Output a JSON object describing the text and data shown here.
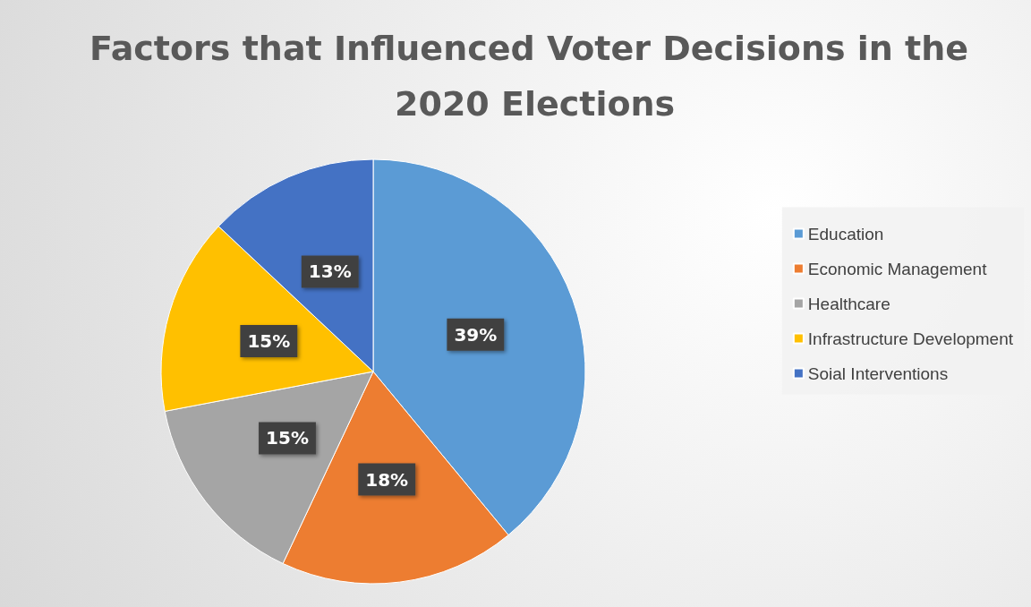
{
  "chart_data": {
    "type": "pie",
    "title": "Factors that Influenced Voter Decisions in the 2020 Elections",
    "categories": [
      "Education",
      "Economic Management",
      "Healthcare",
      "Infrastructure Development",
      "Soial Interventions"
    ],
    "values": [
      39,
      18,
      15,
      15,
      13
    ],
    "colors": [
      "#5b9bd5",
      "#ed7d31",
      "#a5a5a5",
      "#ffc000",
      "#4472c4"
    ],
    "value_labels": [
      "39%",
      "18%",
      "15%",
      "15%",
      "13%"
    ],
    "legend": "right"
  }
}
